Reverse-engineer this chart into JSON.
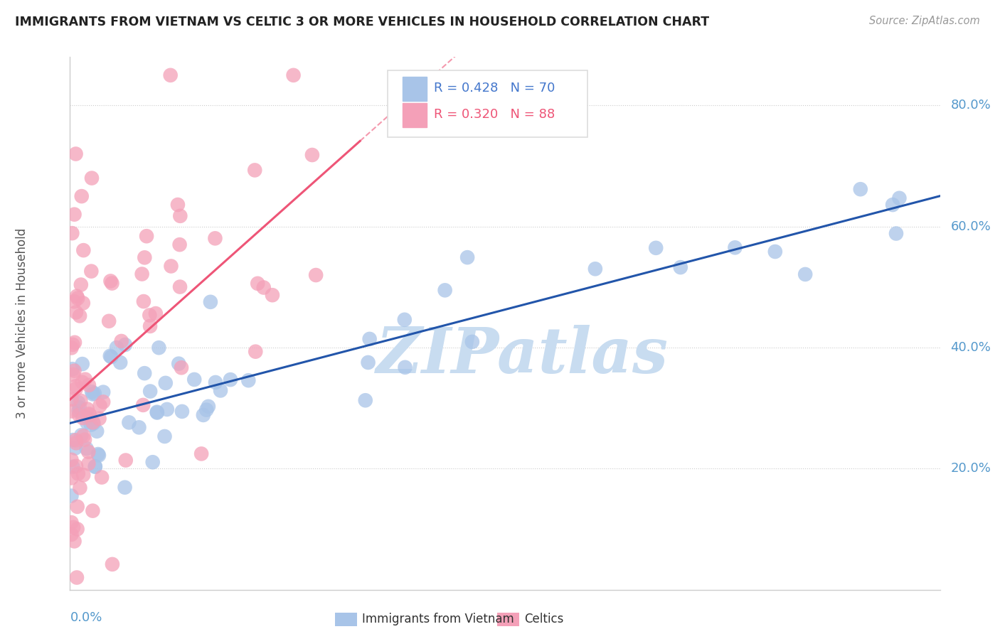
{
  "title": "IMMIGRANTS FROM VIETNAM VS CELTIC 3 OR MORE VEHICLES IN HOUSEHOLD CORRELATION CHART",
  "source": "Source: ZipAtlas.com",
  "ylabel": "3 or more Vehicles in Household",
  "ytick_vals": [
    0.2,
    0.4,
    0.6,
    0.8
  ],
  "ytick_labels": [
    "20.0%",
    "40.0%",
    "60.0%",
    "80.0%"
  ],
  "xlim": [
    0.0,
    0.6
  ],
  "ylim": [
    0.0,
    0.88
  ],
  "legend1_label": "R = 0.428   N = 70",
  "legend2_label": "R = 0.320   N = 88",
  "dot_color_blue": "#A8C4E8",
  "dot_color_pink": "#F4A0B8",
  "trend_color_blue": "#2255AA",
  "trend_color_pink": "#EE5577",
  "background_color": "#FFFFFF",
  "watermark_text": "ZIPatlas",
  "watermark_color": "#C8DCF0",
  "grid_color": "#CCCCCC",
  "axis_color": "#CCCCCC",
  "title_color": "#222222",
  "source_color": "#999999",
  "ylabel_color": "#555555",
  "xtick_color": "#5599CC",
  "ytick_color": "#5599CC",
  "legend_box_color": "#DDDDDD",
  "legend_blue_text_color": "#4477CC",
  "legend_pink_text_color": "#EE5577"
}
